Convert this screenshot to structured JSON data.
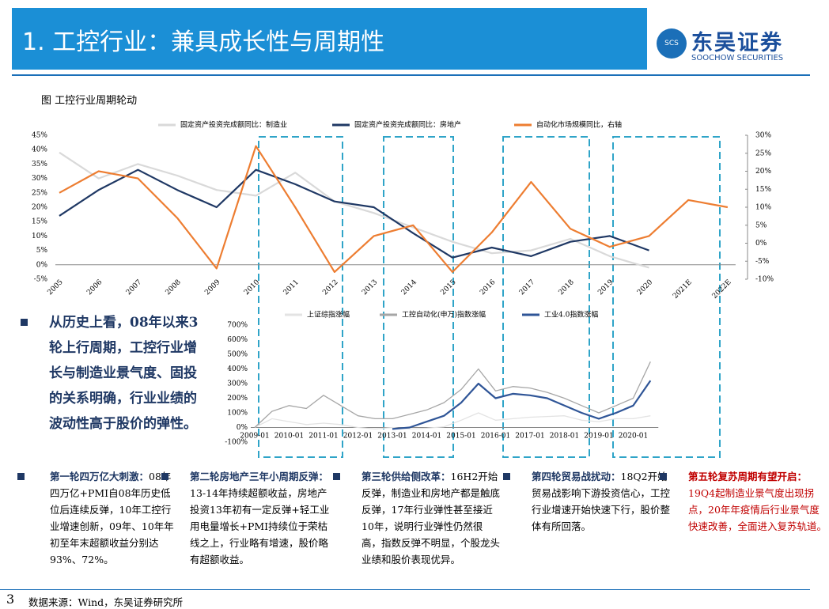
{
  "header": {
    "title": "1. 工控行业：兼具成长性与周期性",
    "logo_cn": "东吴证券",
    "logo_en": "SOOCHOW SECURITIES",
    "logo_mark": "SCS"
  },
  "figure_caption": "图  工控行业周期轮动",
  "chart_data": [
    {
      "type": "line",
      "categories": [
        "2005",
        "2006",
        "2007",
        "2008",
        "2009",
        "2010",
        "2011",
        "2012",
        "2013",
        "2014",
        "2015",
        "2016",
        "2017",
        "2018",
        "2019",
        "2020",
        "2021E",
        "2022E"
      ],
      "series": [
        {
          "name": "固定资产投资完成额同比：制造业",
          "color": "#d9d9d9",
          "values": [
            39,
            30,
            35,
            31,
            26,
            24,
            32,
            22,
            18,
            13,
            8,
            4,
            5,
            9,
            3,
            -1,
            null,
            null
          ]
        },
        {
          "name": "固定资产投资完成额同比：房地产",
          "color": "#1f3864",
          "values": [
            17,
            26,
            33,
            26,
            20,
            33,
            28,
            22,
            20,
            11,
            2.5,
            6,
            3,
            8,
            10,
            5,
            null,
            null
          ]
        },
        {
          "name": "自动化市场规模同比，右轴",
          "color": "#ed7d31",
          "axis": "y2",
          "values": [
            14,
            20,
            18,
            7,
            -7,
            27,
            10,
            -8,
            2,
            5,
            -8,
            3,
            17,
            4,
            -1,
            2,
            12,
            10
          ]
        }
      ],
      "ylim": [
        -5,
        45
      ],
      "yticks": [
        {
          "value": -5,
          "label": "-5%"
        },
        {
          "value": 0,
          "label": "0%"
        },
        {
          "value": 5,
          "label": "5%"
        },
        {
          "value": 10,
          "label": "10%"
        },
        {
          "value": 15,
          "label": "15%"
        },
        {
          "value": 20,
          "label": "20%"
        },
        {
          "value": 25,
          "label": "25%"
        },
        {
          "value": 30,
          "label": "30%"
        },
        {
          "value": 35,
          "label": "35%"
        },
        {
          "value": 40,
          "label": "40%"
        },
        {
          "value": 45,
          "label": "45%"
        }
      ],
      "y2lim": [
        -10,
        30
      ],
      "y2ticks": [
        {
          "value": -10,
          "label": "-10%"
        },
        {
          "value": -5,
          "label": "-5%"
        },
        {
          "value": 0,
          "label": "0%"
        },
        {
          "value": 5,
          "label": "5%"
        },
        {
          "value": 10,
          "label": "10%"
        },
        {
          "value": 15,
          "label": "15%"
        },
        {
          "value": 20,
          "label": "20%"
        },
        {
          "value": 25,
          "label": "25%"
        },
        {
          "value": 30,
          "label": "30%"
        }
      ]
    },
    {
      "type": "line",
      "categories": [
        "2009-01",
        null,
        "2010-01",
        null,
        "2011-01",
        null,
        "2012-01",
        null,
        "2013-01",
        null,
        "2014-01",
        null,
        "2015-01",
        null,
        "2016-01",
        null,
        "2017-01",
        null,
        "2018-01",
        null,
        "2019-01",
        null,
        "2020-01",
        null
      ],
      "series": [
        {
          "name": "上证综指涨幅",
          "color": "#e3e3e3",
          "values": [
            0,
            60,
            40,
            20,
            30,
            20,
            0,
            -10,
            0,
            -10,
            -5,
            5,
            50,
            100,
            50,
            60,
            70,
            75,
            80,
            50,
            40,
            60,
            60,
            80
          ]
        },
        {
          "name": "工控自动化(申万)指数涨幅",
          "color": "#a6a6a6",
          "values": [
            0,
            110,
            150,
            130,
            220,
            150,
            80,
            60,
            60,
            90,
            120,
            170,
            260,
            400,
            250,
            280,
            270,
            240,
            200,
            150,
            100,
            150,
            200,
            450
          ]
        },
        {
          "name": "工业4.0指数涨幅",
          "color": "#2f5597",
          "values": [
            null,
            null,
            null,
            null,
            null,
            null,
            null,
            null,
            -10,
            0,
            40,
            80,
            170,
            300,
            200,
            230,
            220,
            200,
            150,
            100,
            60,
            100,
            150,
            320
          ]
        }
      ],
      "ylim": [
        -100,
        700
      ],
      "yticks": [
        {
          "value": -100,
          "label": "-100%"
        },
        {
          "value": 0,
          "label": "0%"
        },
        {
          "value": 100,
          "label": "100%"
        },
        {
          "value": 200,
          "label": "200%"
        },
        {
          "value": 300,
          "label": "300%"
        },
        {
          "value": 400,
          "label": "400%"
        },
        {
          "value": 500,
          "label": "500%"
        },
        {
          "value": 600,
          "label": "600%"
        },
        {
          "value": 700,
          "label": "700%"
        }
      ]
    }
  ],
  "summary": "从历史上看，08年以来3轮上行周期，工控行业增长与制造业景气度、固投的关系明确，行业业绩的波动性高于股价的弹性。",
  "rounds": [
    {
      "title": "第一轮四万亿大刺激：",
      "body": "08年四万亿+PMI自08年历史低位后连续反弹，10年工控行业增速创新，09年、10年年初至年末超额收益分别达93%、72%。"
    },
    {
      "title": "第二轮房地产三年小周期反弹：",
      "body": "13-14年持续超额收益，房地产投资13年初有一定反弹+轻工业用电量增长+PMI持续位于荣枯线之上，行业略有增速，股价略有超额收益。"
    },
    {
      "title": "第三轮供给侧改革：",
      "body": "16H2开始反弹，制造业和房地产都是触底反弹，17年行业弹性甚至接近10年，说明行业弹性仍然很高，指数反弹不明显，个股龙头业绩和股价表现优异。"
    },
    {
      "title": "第四轮贸易战扰动：",
      "body": "18Q2开始贸易战影响下游投资信心，工控行业增速开始快速下行，股价整体有所回落。"
    },
    {
      "title": "第五轮复苏周期有望开启：",
      "body": "19Q4起制造业景气度出现拐点，20年年疫情后行业景气度快速改善，全面进入复苏轨道。"
    }
  ],
  "footer": {
    "page": "3",
    "source": "数据来源：Wind，东吴证券研究所"
  }
}
